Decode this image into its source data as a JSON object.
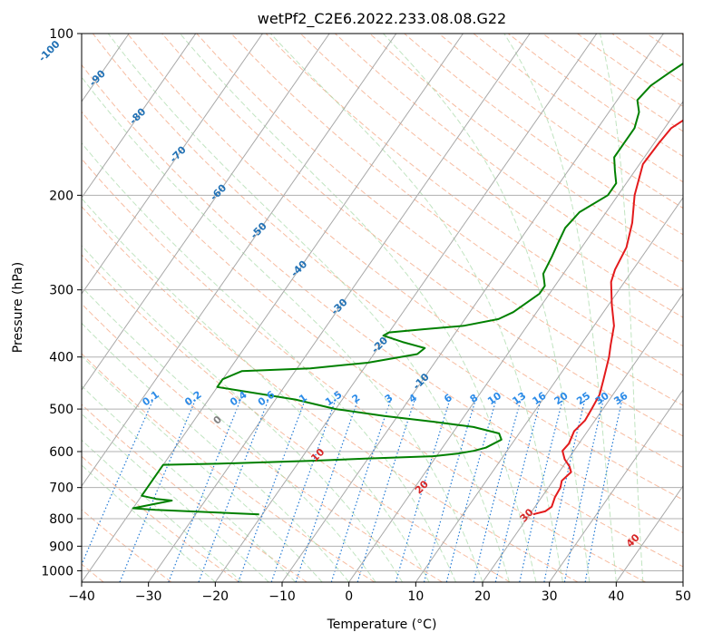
{
  "chart_data": {
    "type": "line",
    "title": "wetPf2_C2E6.2022.233.08.08.G22",
    "xlabel": "Temperature (°C)",
    "ylabel": "Pressure (hPa)",
    "xlim": [
      -40,
      50
    ],
    "ylim": [
      1050,
      100
    ],
    "y_scale": "log",
    "grid": true,
    "x_ticks": [
      -40,
      -30,
      -20,
      -10,
      0,
      10,
      20,
      30,
      40,
      50
    ],
    "x_tick_labels": [
      "−40",
      "−30",
      "−20",
      "−10",
      "0",
      "10",
      "20",
      "30",
      "40",
      "50"
    ],
    "y_ticks": [
      100,
      200,
      300,
      400,
      500,
      600,
      700,
      800,
      900,
      1000
    ],
    "y_tick_labels": [
      "100",
      "200",
      "300",
      "400",
      "500",
      "600",
      "700",
      "800",
      "900",
      "1000"
    ],
    "colors": {
      "temperature": "#e31a1c",
      "dewpoint": "#008000",
      "dry_adiabat": "#f4a582",
      "moist_adiabat": "#a6d8a6",
      "mixing_ratio": "#1f78d4",
      "isotherm": "#a8a8a8",
      "isotherm_label": "#2171b5",
      "dry_adiabat_label": "#d62728",
      "mixing_ratio_label": "#2b8be8"
    },
    "series": [
      {
        "name": "temperature",
        "points": [
          [
            20.5,
            785
          ],
          [
            22.0,
            775
          ],
          [
            22.5,
            760
          ],
          [
            22.0,
            730
          ],
          [
            21.8,
            700
          ],
          [
            21.3,
            680
          ],
          [
            21.8,
            655
          ],
          [
            21.0,
            640
          ],
          [
            19.5,
            620
          ],
          [
            18.3,
            598
          ],
          [
            18.5,
            580
          ],
          [
            18.0,
            550
          ],
          [
            18.5,
            525
          ],
          [
            18.3,
            500
          ],
          [
            18.0,
            470
          ],
          [
            17.0,
            440
          ],
          [
            15.5,
            400
          ],
          [
            14.5,
            380
          ],
          [
            13.0,
            350
          ],
          [
            10.5,
            320
          ],
          [
            8.0,
            290
          ],
          [
            7.3,
            275
          ],
          [
            6.7,
            250
          ],
          [
            5.0,
            225
          ],
          [
            2.5,
            200
          ],
          [
            0.5,
            175
          ],
          [
            0.7,
            160
          ],
          [
            1.0,
            150
          ],
          [
            3.0,
            140
          ],
          [
            6.5,
            130
          ],
          [
            8.5,
            125
          ],
          [
            9.5,
            118
          ],
          [
            10.0,
            114
          ],
          [
            11.0,
            108
          ],
          [
            11.8,
            104
          ],
          [
            11.5,
            100
          ]
        ]
      },
      {
        "name": "dewpoint",
        "points": [
          [
            -20.5,
            785
          ],
          [
            -36.5,
            770
          ],
          [
            -40.0,
            765
          ],
          [
            -35.0,
            740
          ],
          [
            -37.5,
            735
          ],
          [
            -40.0,
            725
          ],
          [
            -40.0,
            635
          ],
          [
            -32.0,
            632
          ],
          [
            -18.0,
            624
          ],
          [
            -10.0,
            618
          ],
          [
            -0.5,
            612
          ],
          [
            3.0,
            605
          ],
          [
            5.0,
            598
          ],
          [
            6.5,
            590
          ],
          [
            8.0,
            570
          ],
          [
            7.0,
            555
          ],
          [
            2.5,
            540
          ],
          [
            -4.0,
            528
          ],
          [
            -12.0,
            515
          ],
          [
            -20.0,
            500
          ],
          [
            -27.0,
            480
          ],
          [
            -40.0,
            455
          ],
          [
            -40.0,
            440
          ],
          [
            -38.0,
            425
          ],
          [
            -28.0,
            420
          ],
          [
            -20.0,
            410
          ],
          [
            -13.5,
            395
          ],
          [
            -13.0,
            385
          ],
          [
            -17.0,
            375
          ],
          [
            -20.5,
            365
          ],
          [
            -20.0,
            360
          ],
          [
            -15.0,
            355
          ],
          [
            -9.5,
            350
          ],
          [
            -5.0,
            340
          ],
          [
            -3.5,
            330
          ],
          [
            -1.5,
            305
          ],
          [
            -1.5,
            295
          ],
          [
            -3.0,
            280
          ],
          [
            -3.5,
            260
          ],
          [
            -4.0,
            245
          ],
          [
            -4.5,
            230
          ],
          [
            -4.0,
            215
          ],
          [
            -1.5,
            200
          ],
          [
            -1.5,
            190
          ],
          [
            -3.0,
            180
          ],
          [
            -4.5,
            170
          ],
          [
            -4.5,
            160
          ],
          [
            -4.5,
            150
          ],
          [
            -5.5,
            140
          ],
          [
            -7.0,
            133
          ],
          [
            -6.5,
            125
          ],
          [
            -5.0,
            118
          ],
          [
            -3.0,
            110
          ],
          [
            0.0,
            103
          ],
          [
            0.5,
            100
          ]
        ]
      }
    ],
    "isotherm_labels": [
      "-100",
      "-90",
      "-80",
      "-70",
      "-60",
      "-50",
      "-40",
      "-30",
      "-20",
      "-10"
    ],
    "isotherm_label_values": [
      -100,
      -90,
      -80,
      -70,
      -60,
      -50,
      -40,
      -30,
      -20,
      -10
    ],
    "mixing_ratio_labels": [
      "0.1",
      "0.2",
      "0.4",
      "0.6",
      "1",
      "1.5",
      "2",
      "3",
      "4",
      "6",
      "8",
      "10",
      "13",
      "16",
      "20",
      "25",
      "30",
      "36"
    ],
    "mixing_ratio_values": [
      0.1,
      0.2,
      0.4,
      0.6,
      1,
      1.5,
      2,
      3,
      4,
      6,
      8,
      10,
      13,
      16,
      20,
      25,
      30,
      36
    ],
    "dry_adiabat_labels": [
      "0",
      "10",
      "20",
      "30",
      "40"
    ],
    "dry_adiabat_label_values": [
      0,
      10,
      20,
      30,
      40
    ]
  }
}
